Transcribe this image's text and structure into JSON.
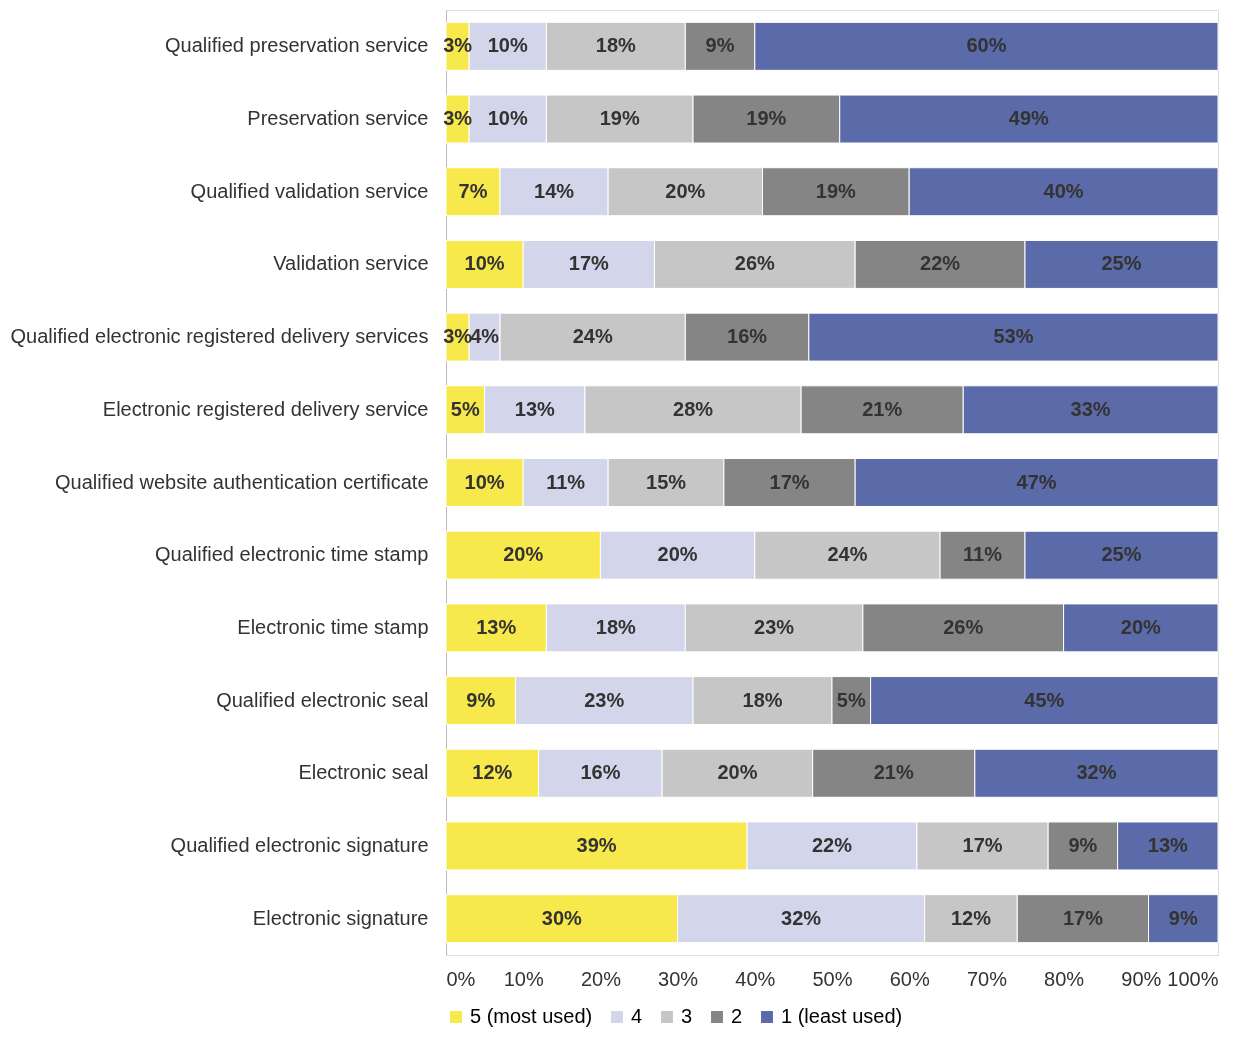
{
  "chart_data": {
    "type": "bar",
    "orientation": "horizontal",
    "stacked": true,
    "categories": [
      "Qualified preservation service",
      "Preservation service",
      "Qualified validation service",
      "Validation service",
      "Qualified electronic registered delivery services",
      "Electronic registered delivery service",
      "Qualified website authentication certificate",
      "Qualified electronic time stamp",
      "Electronic time stamp",
      "Qualified electronic seal",
      "Electronic seal",
      "Qualified electronic signature",
      "Electronic signature"
    ],
    "series": [
      {
        "name": "5 (most used)",
        "color": "#f7e84b",
        "values": [
          3,
          3,
          7,
          10,
          3,
          5,
          10,
          20,
          13,
          9,
          12,
          39,
          30
        ],
        "value_labels": [
          "3%",
          "3%",
          "7%",
          "10%",
          "3%",
          "5%",
          "10%",
          "20%",
          "13%",
          "9%",
          "12%",
          "39%",
          "30%"
        ]
      },
      {
        "name": "4",
        "color": "#d3d5ea",
        "values": [
          10,
          10,
          14,
          17,
          4,
          13,
          11,
          20,
          18,
          23,
          16,
          22,
          32
        ],
        "value_labels": [
          "10%",
          "10%",
          "14%",
          "17%",
          "4%",
          "13%",
          "11%",
          "20%",
          "18%",
          "23%",
          "16%",
          "22%",
          "32%"
        ]
      },
      {
        "name": "3",
        "color": "#c6c6c6",
        "values": [
          18,
          19,
          20,
          26,
          24,
          28,
          15,
          24,
          23,
          18,
          19.5,
          17,
          12
        ],
        "value_labels": [
          "18%",
          "19%",
          "20%",
          "26%",
          "24%",
          "28%",
          "15%",
          "24%",
          "23%",
          "18%",
          "20%",
          "17%",
          "12%"
        ]
      },
      {
        "name": "2",
        "color": "#858585",
        "values": [
          9,
          19,
          19,
          22,
          16,
          21,
          17,
          11,
          26,
          5,
          21,
          9,
          17
        ],
        "value_labels": [
          "9%",
          "19%",
          "19%",
          "22%",
          "16%",
          "21%",
          "17%",
          "11%",
          "26%",
          "5%",
          "21%",
          "9%",
          "17%"
        ]
      },
      {
        "name": "1 (least used)",
        "color": "#5b6aa8",
        "values": [
          60,
          49,
          40,
          25,
          53,
          33,
          47,
          25,
          20,
          45,
          31.5,
          13,
          9
        ],
        "value_labels": [
          "60%",
          "49%",
          "40%",
          "25%",
          "53%",
          "33%",
          "47%",
          "25%",
          "20%",
          "45%",
          "32%",
          "13%",
          "9%"
        ]
      }
    ],
    "xlim": [
      0,
      100
    ],
    "xticks": [
      {
        "value": 0,
        "label": "0%"
      },
      {
        "value": 10,
        "label": "10%"
      },
      {
        "value": 20,
        "label": "20%"
      },
      {
        "value": 30,
        "label": "30%"
      },
      {
        "value": 40,
        "label": "40%"
      },
      {
        "value": 50,
        "label": "50%"
      },
      {
        "value": 60,
        "label": "60%"
      },
      {
        "value": 70,
        "label": "70%"
      },
      {
        "value": 80,
        "label": "80%"
      },
      {
        "value": 90,
        "label": "90%"
      },
      {
        "value": 100,
        "label": "100%"
      }
    ],
    "grid": false,
    "legend": "bottom"
  }
}
